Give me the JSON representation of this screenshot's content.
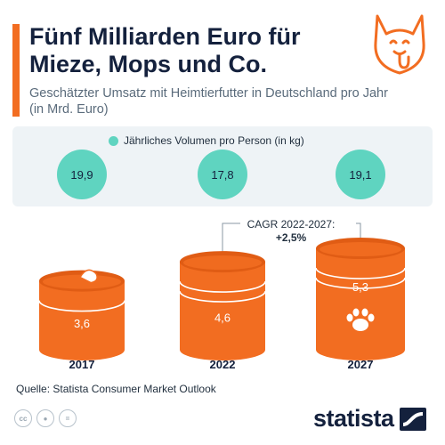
{
  "header": {
    "title": "Fünf Milliarden Euro für Mieze, Mops und Co.",
    "subtitle": "Geschätzter Umsatz mit Heimtierfutter in Deutschland pro Jahr (in Mrd. Euro)"
  },
  "legend": {
    "label": "Jährliches Volumen pro Person (in kg)"
  },
  "annotation": {
    "label": "CAGR 2022-2027:",
    "value": "+2,5%"
  },
  "footer": {
    "source": "Quelle: Statista Consumer Market Outlook",
    "brand": "statista",
    "cc_icons": [
      "cc-icon",
      "person-icon",
      "equals-icon"
    ]
  },
  "logo": {
    "icon": "dog-icon"
  },
  "colors": {
    "accent": "#f26d21",
    "bar": "#f26d21",
    "bar_dark": "#e05c14",
    "bubble": "#5fd4c0",
    "title": "#14213d",
    "panel": "#eef3f6"
  },
  "chart_data": {
    "type": "bar",
    "categories": [
      "2017",
      "2022",
      "2027"
    ],
    "series": [
      {
        "values": [
          3.6,
          4.6,
          5.3
        ],
        "labels": [
          "3,6",
          "4,6",
          "5,3"
        ]
      },
      {
        "name": "Jährliches Volumen pro Person (in kg)",
        "values": [
          19.9,
          17.8,
          19.1
        ],
        "labels": [
          "19,9",
          "17,8",
          "19,1"
        ]
      }
    ]
  }
}
